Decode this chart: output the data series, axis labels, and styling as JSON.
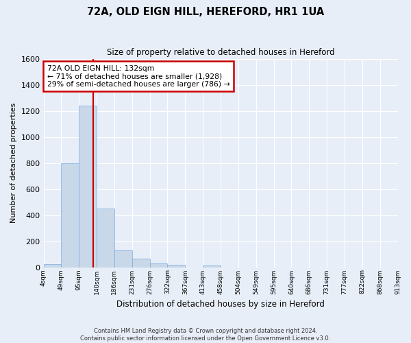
{
  "title": "72A, OLD EIGN HILL, HEREFORD, HR1 1UA",
  "subtitle": "Size of property relative to detached houses in Hereford",
  "xlabel": "Distribution of detached houses by size in Hereford",
  "ylabel": "Number of detached properties",
  "bar_color": "#c8d8e8",
  "bar_edge_color": "#7aabe0",
  "background_color": "#e8eef8",
  "grid_color": "#ffffff",
  "bin_labels": [
    "4sqm",
    "49sqm",
    "95sqm",
    "140sqm",
    "186sqm",
    "231sqm",
    "276sqm",
    "322sqm",
    "367sqm",
    "413sqm",
    "458sqm",
    "504sqm",
    "549sqm",
    "595sqm",
    "640sqm",
    "686sqm",
    "731sqm",
    "777sqm",
    "822sqm",
    "868sqm",
    "913sqm"
  ],
  "bar_values": [
    25,
    800,
    1240,
    450,
    130,
    65,
    28,
    18,
    0,
    15,
    0,
    0,
    0,
    0,
    0,
    0,
    0,
    0,
    0,
    0
  ],
  "ylim": [
    0,
    1600
  ],
  "yticks": [
    0,
    200,
    400,
    600,
    800,
    1000,
    1200,
    1400,
    1600
  ],
  "property_line_bin": 2.82,
  "annotation_text": "72A OLD EIGN HILL: 132sqm\n← 71% of detached houses are smaller (1,928)\n29% of semi-detached houses are larger (786) →",
  "annotation_box_color": "#ffffff",
  "annotation_border_color": "#cc0000",
  "red_line_color": "#cc0000",
  "footer_line1": "Contains HM Land Registry data © Crown copyright and database right 2024.",
  "footer_line2": "Contains public sector information licensed under the Open Government Licence v3.0."
}
